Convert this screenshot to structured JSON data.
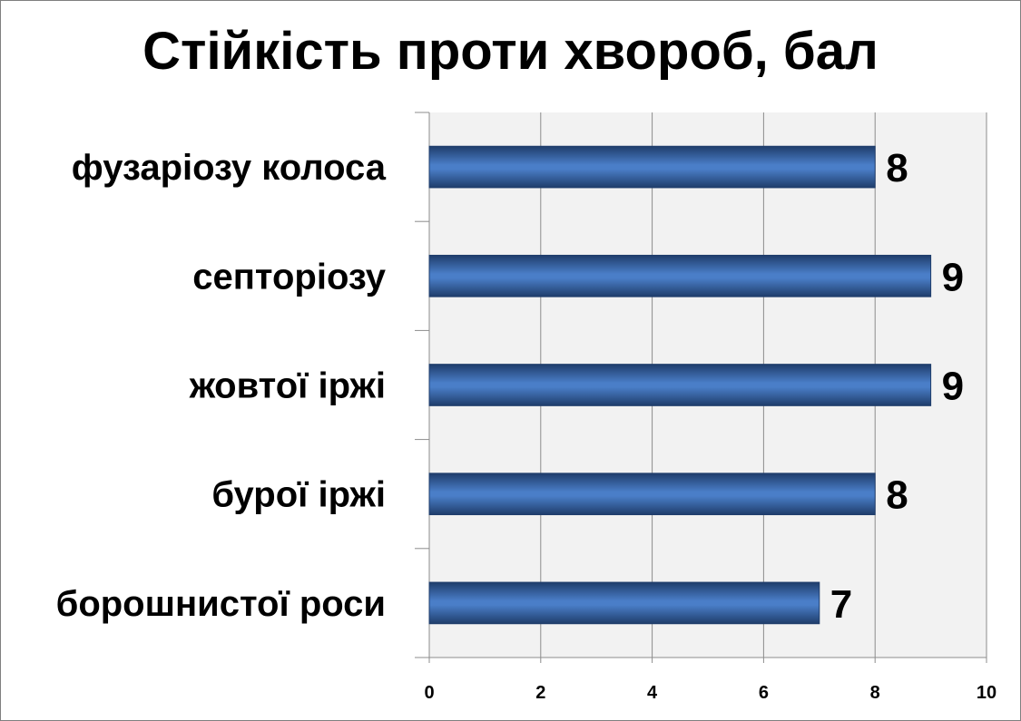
{
  "chart_data": {
    "type": "bar",
    "orientation": "horizontal",
    "title": "Стійкість проти хвороб, бал",
    "categories": [
      "фузаріозу колоса",
      "септоріозу",
      "жовтої іржі",
      "бурої іржі",
      "борошнистої роси"
    ],
    "values": [
      8,
      9,
      9,
      8,
      7
    ],
    "xlim": [
      0,
      10
    ],
    "ticks": [
      0,
      2,
      4,
      6,
      8,
      10
    ],
    "tick_labels": [
      "0",
      "2",
      "4",
      "6",
      "8",
      "10"
    ],
    "grid": true,
    "legend": "none",
    "colors": {
      "bar_dark": "#1f3d6b",
      "bar_mid": "#4a7ec8",
      "bar_light": "#a9c6ef",
      "plot_bg": "#f2f2f2",
      "grid": "#8c8c8c"
    }
  }
}
